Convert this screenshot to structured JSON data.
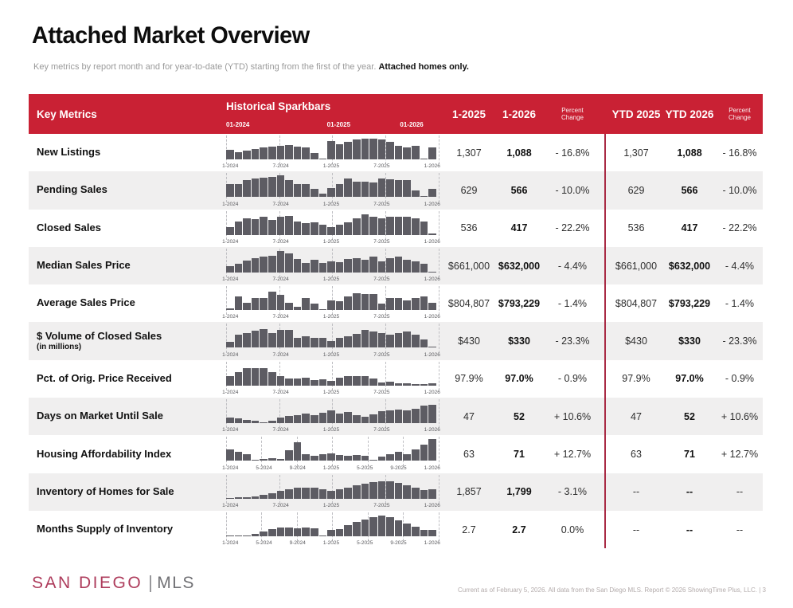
{
  "page": {
    "title": "Attached Market Overview",
    "subtitle": "Key metrics by report month and for year-to-date (YTD) starting from the first of the year. ",
    "subtitle_bold": "Attached homes only.",
    "footer_note": "Current as of February 5, 2026. All data from the San Diego MLS. Report © 2026 ShowingTime Plus, LLC.  |  3",
    "logo": {
      "part1": "SAN DIEGO",
      "part2": "MLS"
    }
  },
  "colors": {
    "header_red": "#c92134",
    "divider_red": "#a92b45",
    "bar_gray": "#5d5c63",
    "row_alt": "#f0efef",
    "logo_crimson": "#ae3c5c",
    "logo_gray": "#717175"
  },
  "table": {
    "header": {
      "key_metrics": "Key Metrics",
      "sparkbars_title": "Historical Sparkbars",
      "year_labels": [
        "01-2024",
        "01-2025",
        "01-2026"
      ],
      "col_m1": "1-2025",
      "col_m2": "1-2026",
      "col_mchg": "Percent Change",
      "col_y1": "YTD 2025",
      "col_y2": "YTD 2026",
      "col_ychg": "Percent Change"
    },
    "tick_month_index": {
      "5": [
        0,
        6,
        12,
        18,
        24
      ],
      "7": [
        0,
        4,
        8,
        12,
        16,
        20,
        24
      ]
    },
    "rows": [
      {
        "label": "New Listings",
        "sublabel": "",
        "ticks": [
          "1-2024",
          "7-2024",
          "1-2025",
          "7-2025",
          "1-2026"
        ],
        "spark": [
          45,
          34,
          42,
          50,
          57,
          61,
          64,
          68,
          61,
          55,
          28,
          4,
          85,
          70,
          81,
          92,
          95,
          97,
          92,
          80,
          62,
          55,
          63,
          4,
          55
        ],
        "m1": "1,307",
        "m2": "1,088",
        "mchg": "- 16.8%",
        "y1": "1,307",
        "y2": "1,088",
        "ychg": "- 16.8%"
      },
      {
        "label": "Pending Sales",
        "sublabel": "",
        "ticks": [
          "1-2024",
          "7-2024",
          "1-2025",
          "7-2025",
          "1-2026"
        ],
        "spark": [
          62,
          62,
          78,
          85,
          90,
          95,
          100,
          78,
          62,
          60,
          38,
          15,
          42,
          60,
          85,
          72,
          72,
          68,
          85,
          82,
          78,
          78,
          30,
          4,
          40
        ],
        "m1": "629",
        "m2": "566",
        "mchg": "- 10.0%",
        "y1": "629",
        "y2": "566",
        "ychg": "- 10.0%"
      },
      {
        "label": "Closed Sales",
        "sublabel": "",
        "ticks": [
          "1-2024",
          "7-2024",
          "1-2025",
          "7-2025",
          "1-2026"
        ],
        "spark": [
          35,
          60,
          75,
          72,
          85,
          68,
          82,
          88,
          62,
          55,
          58,
          48,
          35,
          45,
          58,
          78,
          95,
          82,
          78,
          82,
          82,
          85,
          78,
          62,
          6
        ],
        "m1": "536",
        "m2": "417",
        "mchg": "- 22.2%",
        "y1": "536",
        "y2": "417",
        "ychg": "- 22.2%"
      },
      {
        "label": "Median Sales Price",
        "sublabel": "",
        "ticks": [
          "1-2024",
          "7-2024",
          "1-2025",
          "7-2025",
          "1-2026"
        ],
        "spark": [
          30,
          40,
          55,
          68,
          72,
          78,
          100,
          88,
          62,
          45,
          60,
          45,
          52,
          48,
          62,
          68,
          60,
          72,
          52,
          68,
          72,
          58,
          52,
          42,
          4
        ],
        "m1": "$661,000",
        "m2": "$632,000",
        "mchg": "- 4.4%",
        "y1": "$661,000",
        "y2": "$632,000",
        "ychg": "- 4.4%"
      },
      {
        "label": "Average Sales Price",
        "sublabel": "",
        "ticks": [
          "1-2024",
          "7-2024",
          "1-2025",
          "7-2025",
          "1-2026"
        ],
        "spark": [
          8,
          62,
          35,
          58,
          58,
          85,
          70,
          35,
          15,
          55,
          30,
          4,
          45,
          40,
          65,
          80,
          75,
          75,
          30,
          58,
          58,
          45,
          55,
          65,
          35
        ],
        "m1": "$804,807",
        "m2": "$793,229",
        "mchg": "- 1.4%",
        "y1": "$804,807",
        "y2": "$793,229",
        "ychg": "- 1.4%"
      },
      {
        "label": "$ Volume of Closed Sales",
        "sublabel": "(in millions)",
        "ticks": [
          "1-2024",
          "7-2024",
          "1-2025",
          "7-2025",
          "1-2026"
        ],
        "spark": [
          28,
          62,
          70,
          78,
          88,
          70,
          82,
          82,
          48,
          55,
          45,
          48,
          30,
          45,
          55,
          65,
          85,
          75,
          68,
          62,
          70,
          75,
          62,
          38,
          4
        ],
        "m1": "$430",
        "m2": "$330",
        "mchg": "- 23.3%",
        "y1": "$430",
        "y2": "$330",
        "ychg": "- 23.3%"
      },
      {
        "label": "Pct. of Orig. Price Received",
        "sublabel": "",
        "ticks": [
          "1-2024",
          "7-2024",
          "1-2025",
          "7-2025",
          "1-2026"
        ],
        "spark": [
          45,
          62,
          80,
          82,
          80,
          62,
          45,
          32,
          32,
          35,
          25,
          28,
          22,
          35,
          42,
          42,
          42,
          32,
          15,
          18,
          10,
          12,
          5,
          8,
          12
        ],
        "m1": "97.9%",
        "m2": "97.0%",
        "mchg": "- 0.9%",
        "y1": "97.9%",
        "y2": "97.0%",
        "ychg": "- 0.9%"
      },
      {
        "label": "Days on Market Until Sale",
        "sublabel": "",
        "ticks": [
          "1-2024",
          "7-2024",
          "1-2025",
          "7-2025",
          "1-2026"
        ],
        "spark": [
          28,
          22,
          15,
          10,
          4,
          12,
          25,
          32,
          38,
          45,
          38,
          48,
          58,
          45,
          52,
          38,
          30,
          42,
          55,
          60,
          62,
          58,
          68,
          82,
          85
        ],
        "m1": "47",
        "m2": "52",
        "mchg": "+ 10.6%",
        "y1": "47",
        "y2": "52",
        "ychg": "+ 10.6%"
      },
      {
        "label": "Housing Affordability Index",
        "sublabel": "",
        "ticks": [
          "1-2024",
          "5-2024",
          "9-2024",
          "1-2025",
          "5-2025",
          "9-2025",
          "1-2026"
        ],
        "spark": [
          55,
          42,
          30,
          5,
          10,
          12,
          8,
          50,
          88,
          32,
          22,
          30,
          35,
          28,
          25,
          28,
          25,
          5,
          20,
          32,
          42,
          30,
          52,
          75,
          100
        ],
        "m1": "63",
        "m2": "71",
        "mchg": "+ 12.7%",
        "y1": "63",
        "y2": "71",
        "ychg": "+ 12.7%"
      },
      {
        "label": "Inventory of Homes for Sale",
        "sublabel": "",
        "ticks": [
          "1-2024",
          "7-2024",
          "1-2025",
          "7-2025",
          "1-2026"
        ],
        "spark": [
          3,
          5,
          5,
          10,
          18,
          25,
          35,
          45,
          50,
          50,
          50,
          45,
          35,
          45,
          52,
          60,
          68,
          75,
          82,
          80,
          72,
          62,
          50,
          38,
          42
        ],
        "m1": "1,857",
        "m2": "1,799",
        "mchg": "- 3.1%",
        "y1": "--",
        "y2": "--",
        "ychg": "--"
      },
      {
        "label": "Months Supply of Inventory",
        "sublabel": "",
        "ticks": [
          "1-2024",
          "5-2024",
          "9-2024",
          "1-2025",
          "5-2025",
          "9-2025",
          "1-2026"
        ],
        "spark": [
          3,
          5,
          5,
          12,
          22,
          35,
          42,
          40,
          38,
          40,
          38,
          3,
          28,
          35,
          50,
          65,
          78,
          88,
          95,
          90,
          75,
          60,
          45,
          28,
          30
        ],
        "m1": "2.7",
        "m2": "2.7",
        "mchg": "0.0%",
        "y1": "--",
        "y2": "--",
        "ychg": "--"
      }
    ]
  }
}
